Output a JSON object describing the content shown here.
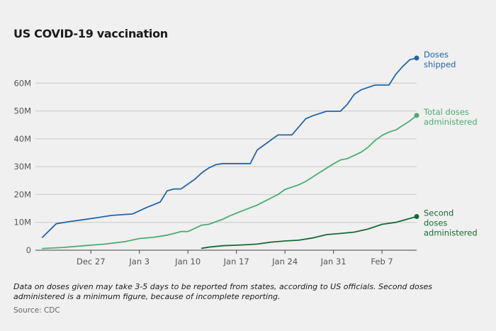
{
  "chart_data": {
    "type": "line",
    "title": "US COVID-19 vaccination",
    "xlabel": "",
    "ylabel": "",
    "ylim": [
      0,
      70000000
    ],
    "xlim": [
      "2020-12-19",
      "2021-02-12"
    ],
    "y_ticks": [
      {
        "value": 0,
        "label": "0"
      },
      {
        "value": 10000000,
        "label": "10M"
      },
      {
        "value": 20000000,
        "label": "20M"
      },
      {
        "value": 30000000,
        "label": "30M"
      },
      {
        "value": 40000000,
        "label": "40M"
      },
      {
        "value": 50000000,
        "label": "50M"
      },
      {
        "value": 60000000,
        "label": "60M"
      }
    ],
    "x_ticks": [
      {
        "date": "2020-12-27",
        "label": "Dec 27"
      },
      {
        "date": "2021-01-03",
        "label": "Jan 3"
      },
      {
        "date": "2021-01-10",
        "label": "Jan 10"
      },
      {
        "date": "2021-01-17",
        "label": "Jan 17"
      },
      {
        "date": "2021-01-24",
        "label": "Jan 24"
      },
      {
        "date": "2021-01-31",
        "label": "Jan 31"
      },
      {
        "date": "2021-02-07",
        "label": "Feb 7"
      }
    ],
    "grid": "horizontal",
    "legend": "direct labels at line ends",
    "series": [
      {
        "name": "Doses shipped",
        "label_lines": [
          "Doses",
          "shipped"
        ],
        "color": "#2166a8",
        "points": [
          [
            "2020-12-20",
            4600000
          ],
          [
            "2020-12-22",
            9500000
          ],
          [
            "2020-12-24",
            10300000
          ],
          [
            "2020-12-26",
            11000000
          ],
          [
            "2020-12-28",
            11700000
          ],
          [
            "2020-12-30",
            12500000
          ],
          [
            "2021-01-02",
            13000000
          ],
          [
            "2021-01-04",
            15300000
          ],
          [
            "2021-01-06",
            17300000
          ],
          [
            "2021-01-07",
            21300000
          ],
          [
            "2021-01-08",
            22000000
          ],
          [
            "2021-01-09",
            22000000
          ],
          [
            "2021-01-11",
            25500000
          ],
          [
            "2021-01-12",
            27800000
          ],
          [
            "2021-01-13",
            29500000
          ],
          [
            "2021-01-14",
            30700000
          ],
          [
            "2021-01-15",
            31100000
          ],
          [
            "2021-01-19",
            31100000
          ],
          [
            "2021-01-20",
            36000000
          ],
          [
            "2021-01-22",
            39600000
          ],
          [
            "2021-01-23",
            41400000
          ],
          [
            "2021-01-25",
            41400000
          ],
          [
            "2021-01-27",
            47200000
          ],
          [
            "2021-01-28",
            48300000
          ],
          [
            "2021-01-30",
            49900000
          ],
          [
            "2021-02-01",
            49900000
          ],
          [
            "2021-02-02",
            52400000
          ],
          [
            "2021-02-03",
            56000000
          ],
          [
            "2021-02-04",
            57600000
          ],
          [
            "2021-02-06",
            59300000
          ],
          [
            "2021-02-08",
            59300000
          ],
          [
            "2021-02-09",
            63200000
          ],
          [
            "2021-02-10",
            66000000
          ],
          [
            "2021-02-11",
            68400000
          ],
          [
            "2021-02-12",
            69000000
          ]
        ]
      },
      {
        "name": "Total doses administered",
        "label_lines": [
          "Total doses",
          "administered"
        ],
        "color": "#4aab75",
        "points": [
          [
            "2020-12-20",
            600000
          ],
          [
            "2020-12-23",
            1000000
          ],
          [
            "2020-12-26",
            1600000
          ],
          [
            "2020-12-29",
            2200000
          ],
          [
            "2021-01-01",
            3100000
          ],
          [
            "2021-01-03",
            4200000
          ],
          [
            "2021-01-05",
            4600000
          ],
          [
            "2021-01-07",
            5400000
          ],
          [
            "2021-01-08",
            6000000
          ],
          [
            "2021-01-09",
            6700000
          ],
          [
            "2021-01-10",
            6700000
          ],
          [
            "2021-01-12",
            9000000
          ],
          [
            "2021-01-13",
            9300000
          ],
          [
            "2021-01-15",
            11100000
          ],
          [
            "2021-01-16",
            12300000
          ],
          [
            "2021-01-18",
            14300000
          ],
          [
            "2021-01-20",
            16200000
          ],
          [
            "2021-01-21",
            17500000
          ],
          [
            "2021-01-23",
            20000000
          ],
          [
            "2021-01-24",
            21800000
          ],
          [
            "2021-01-26",
            23500000
          ],
          [
            "2021-01-27",
            24700000
          ],
          [
            "2021-01-29",
            27900000
          ],
          [
            "2021-01-31",
            31000000
          ],
          [
            "2021-02-01",
            32400000
          ],
          [
            "2021-02-02",
            32900000
          ],
          [
            "2021-02-04",
            35200000
          ],
          [
            "2021-02-05",
            37000000
          ],
          [
            "2021-02-06",
            39400000
          ],
          [
            "2021-02-07",
            41200000
          ],
          [
            "2021-02-08",
            42400000
          ],
          [
            "2021-02-09",
            43200000
          ],
          [
            "2021-02-11",
            46400000
          ],
          [
            "2021-02-12",
            48400000
          ]
        ]
      },
      {
        "name": "Second doses administered",
        "label_lines": [
          "Second",
          "doses",
          "administered"
        ],
        "color": "#136b34",
        "points": [
          [
            "2021-01-12",
            700000
          ],
          [
            "2021-01-13",
            1100000
          ],
          [
            "2021-01-15",
            1600000
          ],
          [
            "2021-01-18",
            1900000
          ],
          [
            "2021-01-20",
            2200000
          ],
          [
            "2021-01-22",
            2900000
          ],
          [
            "2021-01-24",
            3300000
          ],
          [
            "2021-01-26",
            3600000
          ],
          [
            "2021-01-28",
            4400000
          ],
          [
            "2021-01-30",
            5600000
          ],
          [
            "2021-02-01",
            6000000
          ],
          [
            "2021-02-03",
            6500000
          ],
          [
            "2021-02-05",
            7600000
          ],
          [
            "2021-02-07",
            9300000
          ],
          [
            "2021-02-09",
            10000000
          ],
          [
            "2021-02-12",
            12100000
          ]
        ]
      }
    ]
  },
  "footnote": "Data on doses given may take 3-5 days to be reported from states, according to US officials. Second doses administered is a minimum figure, because of incomplete reporting.",
  "source": "Source: CDC"
}
